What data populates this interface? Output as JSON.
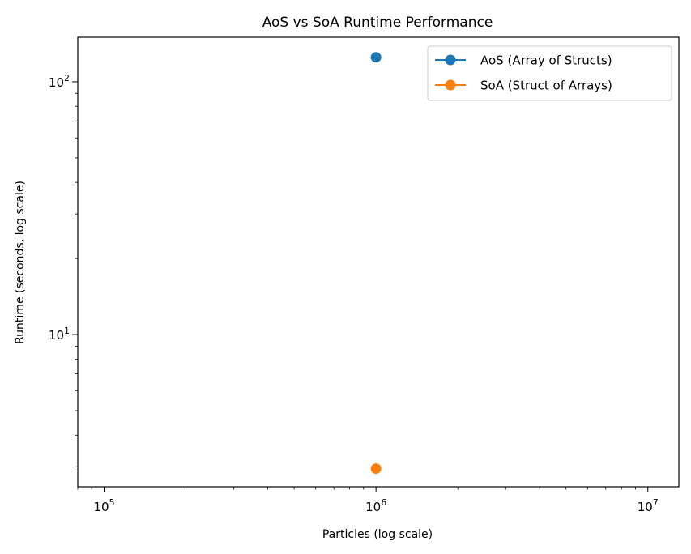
{
  "chart_data": {
    "type": "line",
    "title": "AoS vs SoA Runtime Performance",
    "xlabel": "Particles (log scale)",
    "ylabel": "Runtime (seconds, log scale)",
    "xscale": "log",
    "yscale": "log",
    "xlim": [
      80000,
      13000000
    ],
    "ylim": [
      2.5,
      150
    ],
    "x_ticks": [
      {
        "value": 100000,
        "base": "10",
        "exp": "5"
      },
      {
        "value": 1000000,
        "base": "10",
        "exp": "6"
      },
      {
        "value": 10000000,
        "base": "10",
        "exp": "7"
      }
    ],
    "y_ticks": [
      {
        "value": 10,
        "base": "10",
        "exp": "1"
      },
      {
        "value": 100,
        "base": "10",
        "exp": "2"
      }
    ],
    "grid": false,
    "legend_position": "top-right",
    "series": [
      {
        "name": "AoS (Array of Structs)",
        "color": "#1f77b4",
        "x": [
          1000000
        ],
        "y": [
          125
        ]
      },
      {
        "name": "SoA (Struct of Arrays)",
        "color": "#ff7f0e",
        "x": [
          1000000
        ],
        "y": [
          2.95
        ]
      }
    ]
  }
}
